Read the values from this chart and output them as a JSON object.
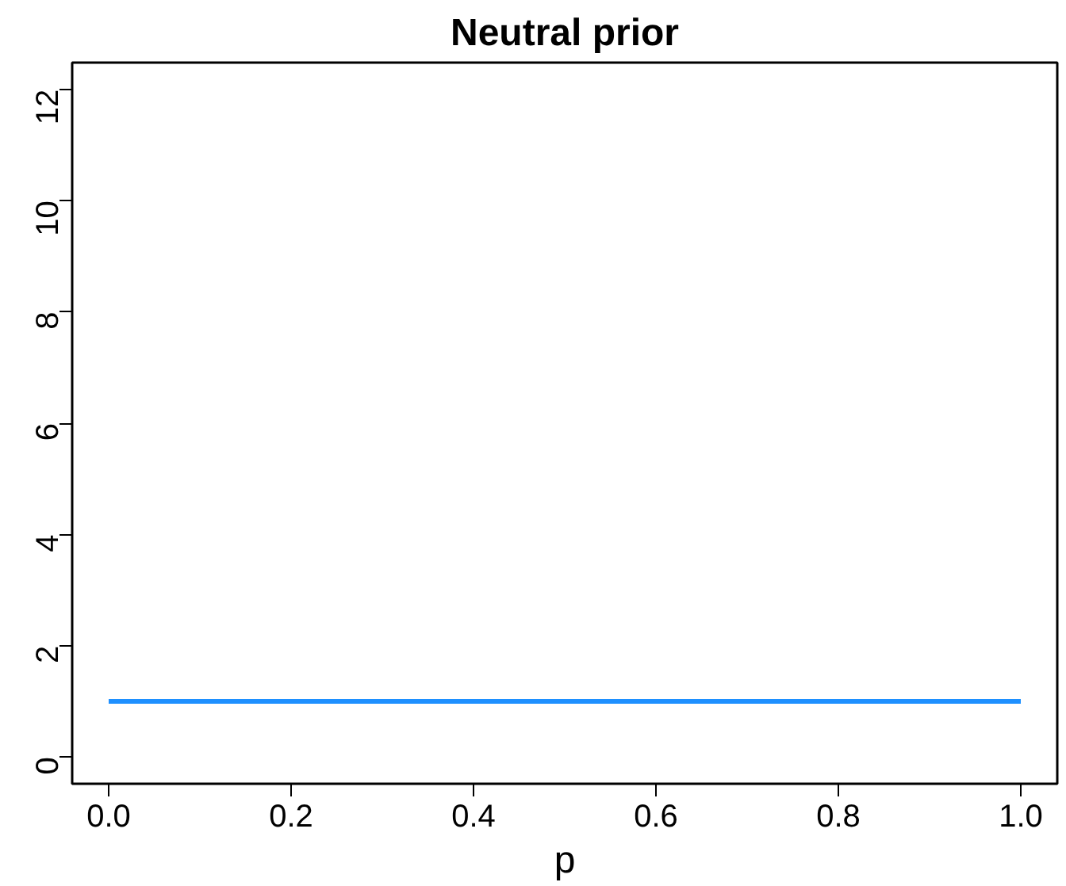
{
  "chart_data": {
    "type": "line",
    "title": "Neutral prior",
    "xlabel": "p",
    "x": [
      0,
      1
    ],
    "series": [
      {
        "color": "#1e90ff",
        "values": [
          1,
          1
        ]
      }
    ],
    "xlim": [
      -0.04,
      1.04
    ],
    "ylim": [
      -0.48,
      12.48
    ],
    "xticks": [
      {
        "value": 0,
        "label": "0.0"
      },
      {
        "value": 0.2,
        "label": "0.2"
      },
      {
        "value": 0.4,
        "label": "0.4"
      },
      {
        "value": 0.6,
        "label": "0.6"
      },
      {
        "value": 0.8,
        "label": "0.8"
      },
      {
        "value": 1,
        "label": "1.0"
      }
    ],
    "yticks": [
      0,
      2,
      4,
      6,
      8,
      10,
      12
    ],
    "grid": false,
    "marker": "none",
    "line_style": "solid"
  }
}
